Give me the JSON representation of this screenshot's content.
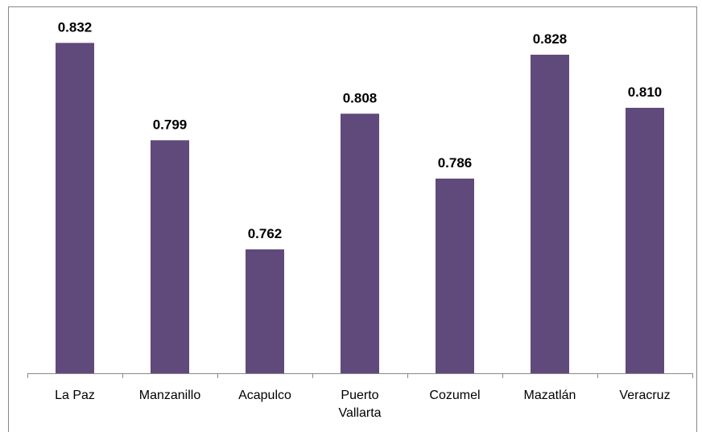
{
  "chart_data": {
    "type": "bar",
    "categories": [
      "La Paz",
      "Manzanillo",
      "Acapulco",
      "Puerto Vallarta",
      "Cozumel",
      "Mazatlán",
      "Veracruz"
    ],
    "values": [
      0.832,
      0.799,
      0.762,
      0.808,
      0.786,
      0.828,
      0.81
    ],
    "value_labels": [
      "0.832",
      "0.799",
      "0.762",
      "0.808",
      "0.786",
      "0.828",
      "0.810"
    ],
    "color": "#604a7b",
    "ylim": [
      0.72,
      0.84
    ]
  }
}
